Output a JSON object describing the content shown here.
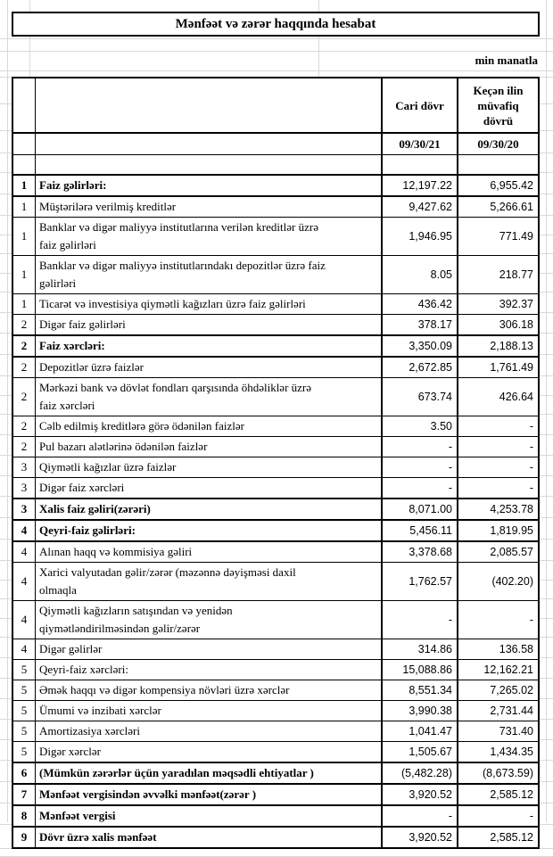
{
  "report": {
    "title": "Mənfəət və zərər haqqında hesabat",
    "unit_note": "min manatla",
    "header": {
      "current_period_label": "Cari dövr",
      "previous_period_label": "Keçən ilin\nmüvafiq\ndövrü",
      "current_period_date": "09/30/21",
      "previous_period_date": "09/30/20"
    },
    "rows": [
      {
        "num": "1",
        "label": "Faiz gəlirləri:",
        "current": "12,197.22",
        "previous": "6,955.42",
        "bold": true
      },
      {
        "num": "1",
        "label": "Müştərilərə verilmiş kreditlər",
        "current": "9,427.62",
        "previous": "5,266.61",
        "bold": false
      },
      {
        "num": "1",
        "label": "Banklar və digər maliyyə institutlarına verilən kreditlər üzrə\nfaiz gəlirləri",
        "current": "1,946.95",
        "previous": "771.49",
        "bold": false
      },
      {
        "num": "1",
        "label": "Banklar və digər maliyyə institutlarındakı depozitlər üzrə faiz\ngəlirləri",
        "current": "8.05",
        "previous": "218.77",
        "bold": false
      },
      {
        "num": "1",
        "label": "Ticarət və investisiya qiymətli kağızları üzrə faiz gəlirləri",
        "current": "436.42",
        "previous": "392.37",
        "bold": false
      },
      {
        "num": "2",
        "label": "Digər faiz gəlirləri",
        "current": "378.17",
        "previous": "306.18",
        "bold": false
      },
      {
        "num": "2",
        "label": "Faiz xərcləri:",
        "current": "3,350.09",
        "previous": "2,188.13",
        "bold": true
      },
      {
        "num": "2",
        "label": "Depozitlər üzrə faizlər",
        "current": "2,672.85",
        "previous": "1,761.49",
        "bold": false
      },
      {
        "num": "2",
        "label": "Mərkəzi bank və dövlət fondları qarşısında öhdəliklər üzrə\nfaiz xərcləri",
        "current": "673.74",
        "previous": "426.64",
        "bold": false
      },
      {
        "num": "2",
        "label": "Cəlb edilmiş kreditlərə görə ödənilən faizlər",
        "current": "3.50",
        "previous": "-",
        "bold": false
      },
      {
        "num": "2",
        "label": "Pul bazarı alətlərinə ödənilən faizlər",
        "current": "-",
        "previous": "-",
        "bold": false
      },
      {
        "num": "3",
        "label": "Qiymətli kağızlar üzrə faizlər",
        "current": "-",
        "previous": "-",
        "bold": false
      },
      {
        "num": "3",
        "label": "Digər faiz xərcləri",
        "current": "-",
        "previous": "-",
        "bold": false
      },
      {
        "num": "3",
        "label": "Xalis faiz gəliri(zərəri)",
        "current": "8,071.00",
        "previous": "4,253.78",
        "bold": true
      },
      {
        "num": "4",
        "label": "Qeyri-faiz gəlirləri:",
        "current": "5,456.11",
        "previous": "1,819.95",
        "bold": true
      },
      {
        "num": "4",
        "label": "Alınan haqq və kommisiya gəliri",
        "current": "3,378.68",
        "previous": "2,085.57",
        "bold": false
      },
      {
        "num": "4",
        "label": "Xarici valyutadan gəlir/zərər (məzənnə dəyişməsi daxil\nolmaqla",
        "current": "1,762.57",
        "previous": "(402.20)",
        "bold": false
      },
      {
        "num": "4",
        "label": "Qiymətli kağızların satışından və yenidən\nqiymətləndirilməsindən gəlir/zərər",
        "current": "-",
        "previous": "-",
        "bold": false
      },
      {
        "num": "4",
        "label": "Digər gəlirlər",
        "current": "314.86",
        "previous": "136.58",
        "bold": false
      },
      {
        "num": "5",
        "label": "Qeyri-faiz xərcləri:",
        "current": "15,088.86",
        "previous": "12,162.21",
        "bold": false
      },
      {
        "num": "5",
        "label": "Əmək haqqı və digər kompensiya növləri üzrə xərclər",
        "current": "8,551.34",
        "previous": "7,265.02",
        "bold": false
      },
      {
        "num": "5",
        "label": "Ümumi və inzibati xərclər",
        "current": "3,990.38",
        "previous": "2,731.44",
        "bold": false
      },
      {
        "num": "5",
        "label": "Amortizasiya xərcləri",
        "current": "1,041.47",
        "previous": "731.40",
        "bold": false
      },
      {
        "num": "5",
        "label": "Digər xərclər",
        "current": "1,505.67",
        "previous": "1,434.35",
        "bold": false
      },
      {
        "num": "6",
        "label": "(Mümkün zərərlər üçün yaradılan məqsədli ehtiyatlar )",
        "current": "(5,482.28)",
        "previous": "(8,673.59)",
        "bold": true
      },
      {
        "num": "7",
        "label": "Mənfəət vergisindən əvvəlki mənfəət(zərər )",
        "current": "3,920.52",
        "previous": "2,585.12",
        "bold": true
      },
      {
        "num": "8",
        "label": "Mənfəət vergisi",
        "current": "-",
        "previous": "-",
        "bold": true
      },
      {
        "num": "9",
        "label": "Dövr üzrə xalis mənfəət",
        "current": "3,920.52",
        "previous": "2,585.12",
        "bold": true
      }
    ]
  }
}
